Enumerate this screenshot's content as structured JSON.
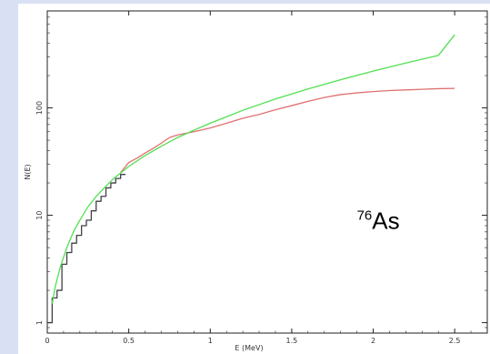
{
  "chart_data": {
    "type": "line",
    "xlabel": "E (MeV)",
    "ylabel": "N(E)",
    "xlim": [
      0,
      2.7
    ],
    "ylog": true,
    "ylim": [
      0.8,
      800
    ],
    "x_ticks": [
      0,
      0.5,
      1,
      1.5,
      2,
      2.5
    ],
    "x_tick_labels": [
      "0",
      "0.5",
      "1",
      "1.5",
      "2",
      "2.5"
    ],
    "y_ticks": [
      1,
      10,
      100
    ],
    "y_tick_labels": [
      "1",
      "10",
      "100"
    ],
    "annotation": {
      "isotope_mass": "76",
      "isotope_symbol": "As",
      "x": 1.9,
      "y": 7.5
    },
    "series": [
      {
        "style": "step",
        "color": "#404048",
        "x": [
          0,
          0.03,
          0.06,
          0.09,
          0.12,
          0.15,
          0.18,
          0.21,
          0.24,
          0.27,
          0.3,
          0.33,
          0.36,
          0.39,
          0.42,
          0.45
        ],
        "y": [
          1,
          1.7,
          2,
          3.5,
          4.5,
          5.5,
          6.5,
          8,
          9,
          11,
          13.5,
          15,
          18,
          20,
          22,
          24
        ]
      },
      {
        "style": "line",
        "color": "#e07070",
        "x": [
          0.45,
          0.5,
          0.55,
          0.6,
          0.65,
          0.7,
          0.75,
          0.8,
          0.9,
          1.0,
          1.1,
          1.2,
          1.3,
          1.4,
          1.5,
          1.6,
          1.7,
          1.8,
          1.9,
          2.0,
          2.1,
          2.2,
          2.3,
          2.4,
          2.5
        ],
        "y": [
          25,
          31,
          34,
          38,
          42,
          47,
          53,
          56,
          60,
          65,
          72,
          80,
          87,
          96,
          105,
          115,
          125,
          133,
          138,
          142,
          145,
          147,
          149,
          151,
          152
        ]
      },
      {
        "style": "smooth",
        "color": "#50e050",
        "x": [
          0.03,
          0.05,
          0.08,
          0.12,
          0.16,
          0.2,
          0.25,
          0.3,
          0.35,
          0.4,
          0.5,
          0.6,
          0.7,
          0.8,
          0.9,
          1.0,
          1.2,
          1.4,
          1.6,
          1.8,
          2.0,
          2.2,
          2.4,
          2.5
        ],
        "y": [
          1.5,
          2.2,
          3.3,
          5,
          7,
          9,
          12,
          15,
          18,
          21.5,
          28.5,
          36,
          44,
          53,
          62,
          72,
          95,
          121,
          150,
          183,
          220,
          262,
          308,
          480
        ]
      }
    ]
  }
}
